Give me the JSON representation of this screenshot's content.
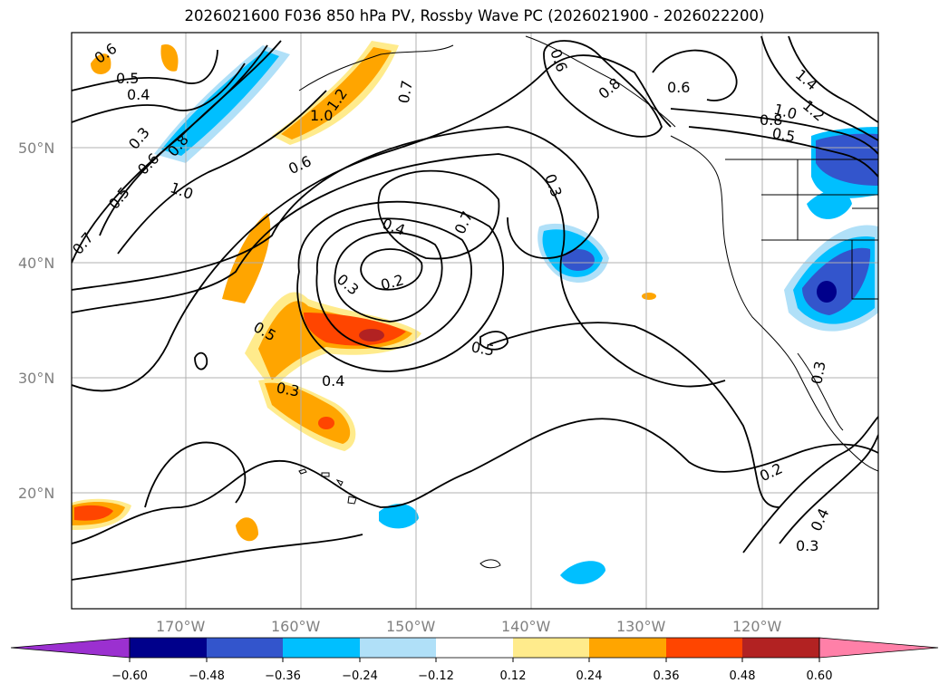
{
  "title": "2026021600 F036 850 hPa PV, Rossby Wave PC (2026021900 - 2026022200)",
  "map": {
    "lat_labels": [
      "50°N",
      "40°N",
      "30°N",
      "20°N"
    ],
    "lon_labels": [
      "170°W",
      "160°W",
      "150°W",
      "140°W",
      "130°W",
      "120°W"
    ],
    "contour_labels": [
      {
        "text": "0.6"
      },
      {
        "text": "0.5"
      },
      {
        "text": "0.4"
      },
      {
        "text": "0.3"
      },
      {
        "text": "0.6"
      },
      {
        "text": "0.8"
      },
      {
        "text": "0.5"
      },
      {
        "text": "1.0"
      },
      {
        "text": "0.7"
      },
      {
        "text": "1.2"
      },
      {
        "text": "1.0"
      },
      {
        "text": "0.7"
      },
      {
        "text": "0.6"
      },
      {
        "text": "0.7"
      },
      {
        "text": "0.4"
      },
      {
        "text": "0.2"
      },
      {
        "text": "0.3"
      },
      {
        "text": "0.5"
      },
      {
        "text": "0.4"
      },
      {
        "text": "0.3"
      },
      {
        "text": "0.5"
      },
      {
        "text": "0.6"
      },
      {
        "text": "0.8"
      },
      {
        "text": "0.6"
      },
      {
        "text": "0.3"
      },
      {
        "text": "1.4"
      },
      {
        "text": "1.2"
      },
      {
        "text": "1.0"
      },
      {
        "text": "0.8"
      },
      {
        "text": "0.5"
      },
      {
        "text": "0.3"
      },
      {
        "text": "0.2"
      },
      {
        "text": "0.4"
      },
      {
        "text": "0.3"
      }
    ]
  },
  "colorbar": {
    "colors": [
      "#9b30d0",
      "#00008b",
      "#3355cc",
      "#00bfff",
      "#b0e0f8",
      "#ffffff",
      "#ffeb8c",
      "#ffa500",
      "#ff4500",
      "#b22222",
      "#ff80a8"
    ],
    "tick_labels": [
      "−0.60",
      "−0.48",
      "−0.36",
      "−0.24",
      "−0.12",
      "0.12",
      "0.24",
      "0.36",
      "0.48",
      "0.60"
    ]
  },
  "colors": {
    "grid": "#b0b0b0",
    "contour": "#000000",
    "axis_label": "#808080"
  }
}
